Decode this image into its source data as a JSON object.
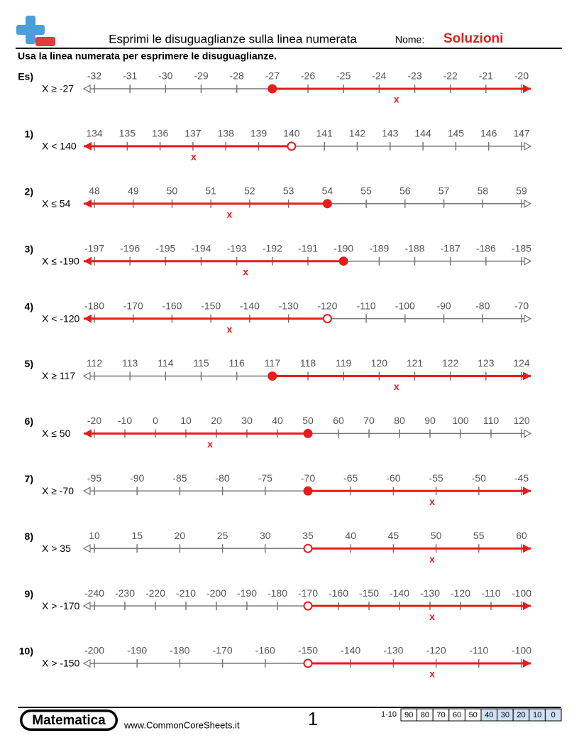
{
  "header": {
    "title": "Esprimi le disuguaglianze sulla linea numerata",
    "name_label": "Nome:",
    "name_value": "Soluzioni",
    "instructions": "Usa la linea numerata per esprimere le disuguaglianze."
  },
  "problems": [
    {
      "label": "Es)",
      "inequality": "X ≥ -27",
      "ticks": [
        -32,
        -31,
        -30,
        -29,
        -28,
        -27,
        -26,
        -25,
        -24,
        -23,
        -22,
        -21,
        -20
      ],
      "point": -27,
      "closed": true,
      "direction": "right",
      "mark": "x"
    },
    {
      "label": "1)",
      "inequality": "X < 140",
      "ticks": [
        134,
        135,
        136,
        137,
        138,
        139,
        140,
        141,
        142,
        143,
        144,
        145,
        146,
        147
      ],
      "point": 140,
      "closed": false,
      "direction": "left",
      "mark": "x"
    },
    {
      "label": "2)",
      "inequality": "X ≤ 54",
      "ticks": [
        48,
        49,
        50,
        51,
        52,
        53,
        54,
        55,
        56,
        57,
        58,
        59
      ],
      "point": 54,
      "closed": true,
      "direction": "left",
      "mark": "x"
    },
    {
      "label": "3)",
      "inequality": "X ≤ -190",
      "ticks": [
        -197,
        -196,
        -195,
        -194,
        -193,
        -192,
        -191,
        -190,
        -189,
        -188,
        -187,
        -186,
        -185
      ],
      "point": -190,
      "closed": true,
      "direction": "left",
      "mark": "x"
    },
    {
      "label": "4)",
      "inequality": "X < -120",
      "ticks": [
        -180,
        -170,
        -160,
        -150,
        -140,
        -130,
        -120,
        -110,
        -100,
        -90,
        -80,
        -70
      ],
      "point": -120,
      "closed": false,
      "direction": "left",
      "mark": "x"
    },
    {
      "label": "5)",
      "inequality": "X ≥ 117",
      "ticks": [
        112,
        113,
        114,
        115,
        116,
        117,
        118,
        119,
        120,
        121,
        122,
        123,
        124
      ],
      "point": 117,
      "closed": true,
      "direction": "right",
      "mark": "x"
    },
    {
      "label": "6)",
      "inequality": "X ≤ 50",
      "ticks": [
        -20,
        -10,
        0,
        10,
        20,
        30,
        40,
        50,
        60,
        70,
        80,
        90,
        100,
        110,
        120
      ],
      "point": 50,
      "closed": true,
      "direction": "left",
      "mark": "x"
    },
    {
      "label": "7)",
      "inequality": "X ≥ -70",
      "ticks": [
        -95,
        -90,
        -85,
        -80,
        -75,
        -70,
        -65,
        -60,
        -55,
        -50,
        -45
      ],
      "point": -70,
      "closed": true,
      "direction": "right",
      "mark": "x"
    },
    {
      "label": "8)",
      "inequality": "X > 35",
      "ticks": [
        10,
        15,
        20,
        25,
        30,
        35,
        40,
        45,
        50,
        55,
        60
      ],
      "point": 35,
      "closed": false,
      "direction": "right",
      "mark": "x"
    },
    {
      "label": "9)",
      "inequality": "X > -170",
      "ticks": [
        -240,
        -230,
        -220,
        -210,
        -200,
        -190,
        -180,
        -170,
        -160,
        -150,
        -140,
        -130,
        -120,
        -110,
        -100
      ],
      "point": -170,
      "closed": false,
      "direction": "right",
      "mark": "x"
    },
    {
      "label": "10)",
      "inequality": "X > -150",
      "ticks": [
        -200,
        -190,
        -180,
        -170,
        -160,
        -150,
        -140,
        -130,
        -120,
        -110,
        -100
      ],
      "point": -150,
      "closed": false,
      "direction": "right",
      "mark": "x"
    }
  ],
  "footer": {
    "brand": "Matematica",
    "url": "www.CommonCoreSheets.it",
    "page": "1",
    "score_label": "1-10",
    "scores": [
      "90",
      "80",
      "70",
      "60",
      "50",
      "40",
      "30",
      "20",
      "10",
      "0"
    ]
  }
}
